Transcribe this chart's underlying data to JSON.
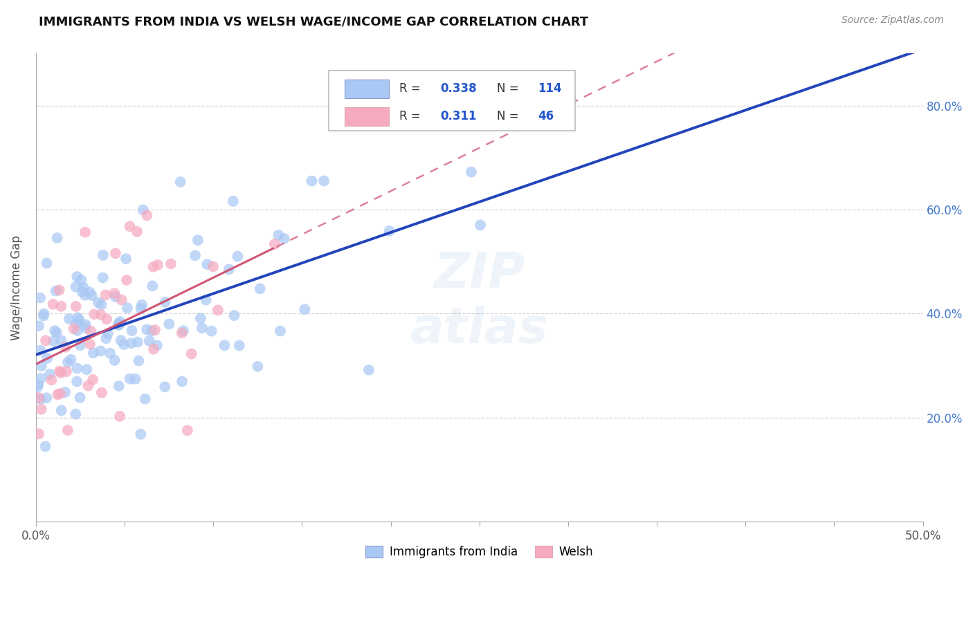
{
  "title": "IMMIGRANTS FROM INDIA VS WELSH WAGE/INCOME GAP CORRELATION CHART",
  "source": "Source: ZipAtlas.com",
  "ylabel": "Wage/Income Gap",
  "xlim": [
    0.0,
    0.5
  ],
  "ylim": [
    0.0,
    0.9
  ],
  "india_R": "0.338",
  "india_N": "114",
  "welsh_R": "0.311",
  "welsh_N": "46",
  "india_color": "#aac8f5",
  "welsh_color": "#f5aac0",
  "india_line_color": "#2244bb",
  "welsh_line_color": "#d05575",
  "background_color": "#ffffff",
  "grid_color": "#cccccc",
  "legend_india_label": "Immigrants from India",
  "legend_welsh_label": "Welsh",
  "xtick_labels": [
    "0.0%",
    "",
    "",
    "",
    "",
    "",
    "",
    "",
    "",
    "",
    "50.0%"
  ],
  "ytick_right": [
    "20.0%",
    "40.0%",
    "60.0%",
    "80.0%"
  ],
  "ytick_pos": [
    0.2,
    0.4,
    0.6,
    0.8
  ],
  "r_n_color": "#2255cc",
  "r_label_color": "#333333"
}
